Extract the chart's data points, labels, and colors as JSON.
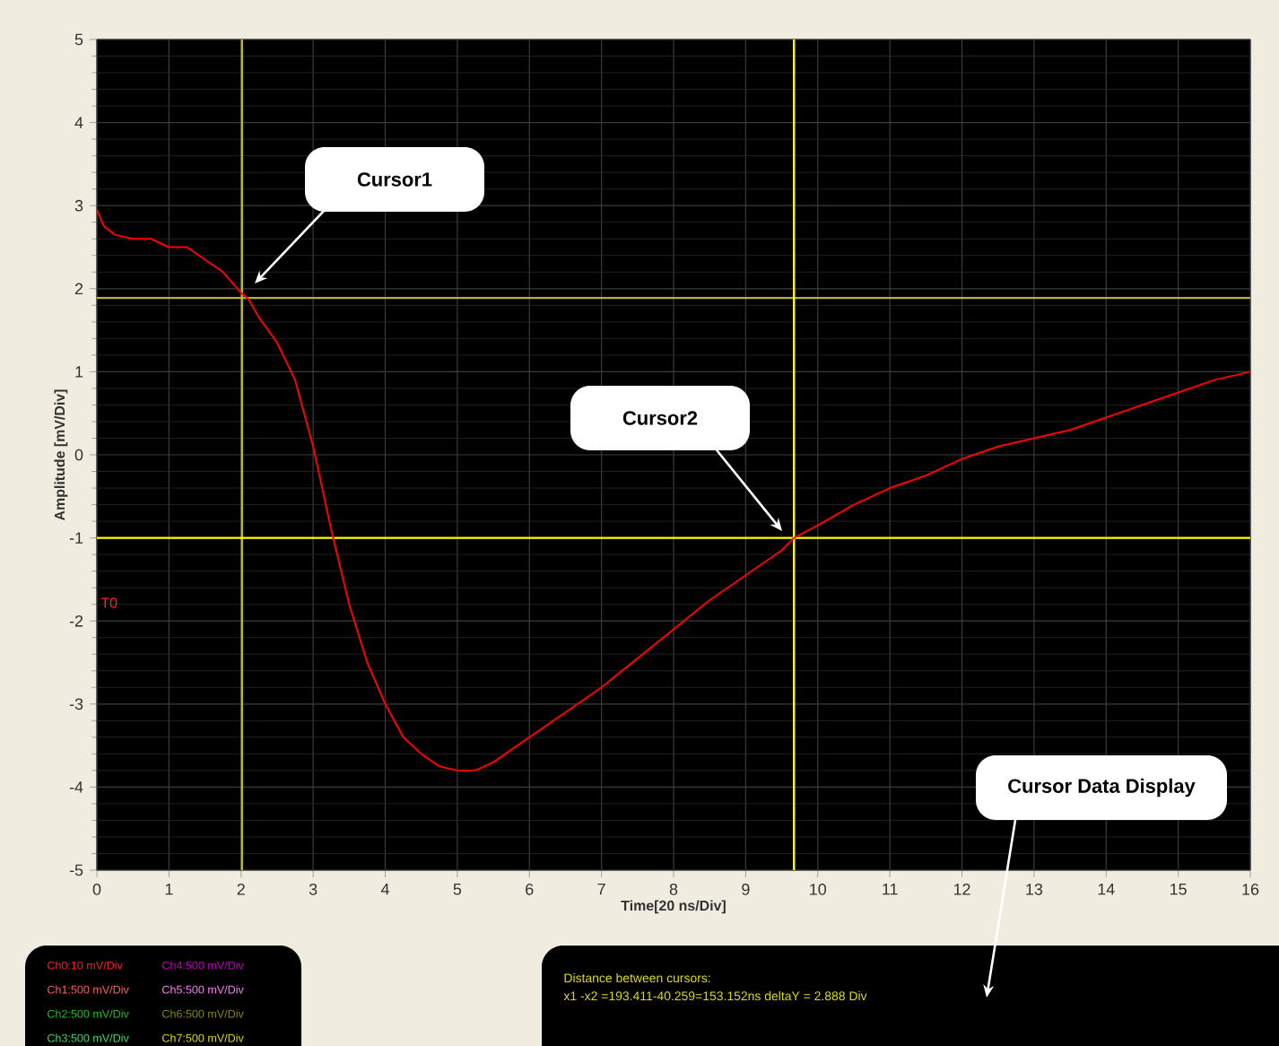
{
  "chart_data": {
    "type": "line",
    "xlabel": "Time[20 ns/Div]",
    "ylabel": "Amplitude [mV/Div]",
    "xlim": [
      0,
      16
    ],
    "ylim": [
      -5,
      5
    ],
    "xticks": [
      0,
      1,
      2,
      3,
      4,
      5,
      6,
      7,
      8,
      9,
      10,
      11,
      12,
      13,
      14,
      15,
      16
    ],
    "yticks": [
      -5,
      -4,
      -3,
      -2,
      -1,
      0,
      1,
      2,
      3,
      4,
      5
    ],
    "grid": true,
    "marker": "none",
    "line_style": "solid",
    "series": [
      {
        "color": "#ff0000",
        "x": [
          0,
          0.1,
          0.25,
          0.5,
          0.75,
          1.0,
          1.25,
          1.5,
          1.75,
          2.0,
          2.1,
          2.25,
          2.5,
          2.75,
          3.0,
          3.25,
          3.5,
          3.75,
          4.0,
          4.25,
          4.5,
          4.75,
          5.0,
          5.25,
          5.5,
          5.75,
          6.0,
          6.5,
          7.0,
          7.5,
          8.0,
          8.5,
          9.0,
          9.5,
          9.67,
          10.0,
          10.5,
          11.0,
          11.5,
          12.0,
          12.5,
          13.0,
          13.5,
          14.0,
          14.5,
          15.0,
          15.5,
          16.0
        ],
        "values": [
          2.95,
          2.75,
          2.65,
          2.6,
          2.6,
          2.5,
          2.5,
          2.35,
          2.2,
          1.95,
          1.88,
          1.65,
          1.35,
          0.9,
          0.1,
          -0.9,
          -1.8,
          -2.5,
          -3.0,
          -3.4,
          -3.6,
          -3.75,
          -3.8,
          -3.8,
          -3.7,
          -3.55,
          -3.4,
          -3.1,
          -2.8,
          -2.45,
          -2.1,
          -1.75,
          -1.45,
          -1.15,
          -1.0,
          -0.85,
          -0.6,
          -0.4,
          -0.25,
          -0.05,
          0.1,
          0.2,
          0.3,
          0.45,
          0.6,
          0.75,
          0.9,
          1.0
        ]
      }
    ],
    "ref_lines": [
      {
        "axis": "x",
        "value": 2.013,
        "color": "#b4b43c"
      },
      {
        "axis": "y",
        "value": 1.888,
        "color": "#b4b43c"
      },
      {
        "axis": "x",
        "value": 9.67,
        "color": "#ffff00"
      },
      {
        "axis": "y",
        "value": -1.0,
        "color": "#ffff00"
      }
    ],
    "annotations": [
      "Cursor1",
      "Cursor2",
      "Cursor Data Display",
      "T0",
      "Ch0:10 mV/Div",
      "Ch1:500 mV/Div",
      "Ch2:500 mV/Div",
      "Ch3:500 mV/Div",
      "Ch4:500 mV/Div",
      "Ch5:500 mV/Div",
      "Ch6:500 mV/Div",
      "Ch7:500 mV/Div",
      "Distance between cursors:",
      "x1 -x2 =193.411-40.259=153.152ns deltaY = 2.888 Div"
    ]
  }
}
